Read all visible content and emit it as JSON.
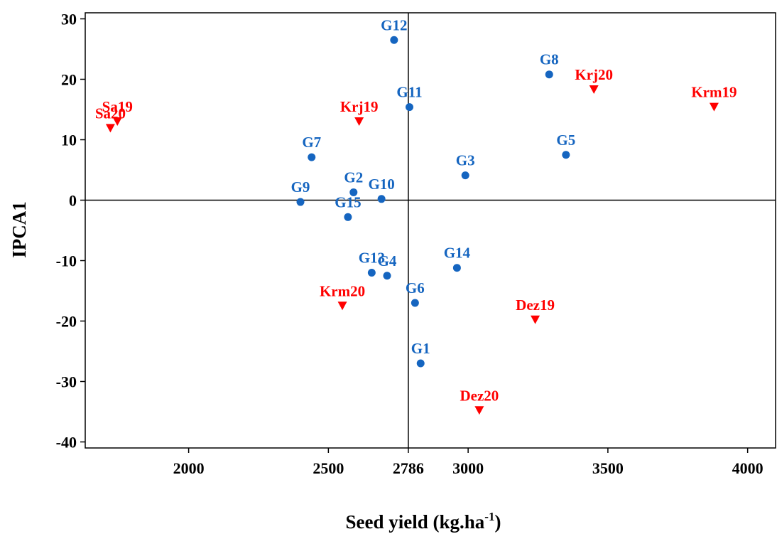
{
  "chart_data": {
    "type": "scatter",
    "title": "",
    "xlabel": "Seed yield (kg.ha",
    "xlabel_sup": "-1",
    "xlabel_close": ")",
    "ylabel": "IPCA1",
    "xlim": [
      1630,
      4100
    ],
    "ylim": [
      -41,
      31
    ],
    "x_ticks": [
      2000,
      2500,
      2786,
      3000,
      3500,
      4000
    ],
    "y_ticks": [
      -40,
      -30,
      -20,
      -10,
      0,
      10,
      20,
      30
    ],
    "reference_lines": {
      "x": 2786,
      "y": 0
    },
    "grid": false,
    "colors": {
      "genotype": "#1565C0",
      "environment": "#FF0000"
    },
    "series": [
      {
        "marker": "circle",
        "color": "#1565C0",
        "points": [
          {
            "label": "G1",
            "x": 2830,
            "y": -27.0
          },
          {
            "label": "G2",
            "x": 2590,
            "y": 1.3
          },
          {
            "label": "G3",
            "x": 2990,
            "y": 4.1
          },
          {
            "label": "G4",
            "x": 2710,
            "y": -12.5
          },
          {
            "label": "G5",
            "x": 3350,
            "y": 7.5
          },
          {
            "label": "G6",
            "x": 2810,
            "y": -17.0
          },
          {
            "label": "G7",
            "x": 2440,
            "y": 7.1
          },
          {
            "label": "G8",
            "x": 3290,
            "y": 20.8
          },
          {
            "label": "G9",
            "x": 2400,
            "y": -0.3
          },
          {
            "label": "G10",
            "x": 2690,
            "y": 0.2
          },
          {
            "label": "G11",
            "x": 2790,
            "y": 15.4
          },
          {
            "label": "G12",
            "x": 2735,
            "y": 26.5
          },
          {
            "label": "G13",
            "x": 2655,
            "y": -12.0
          },
          {
            "label": "G14",
            "x": 2960,
            "y": -11.2
          },
          {
            "label": "G15",
            "x": 2570,
            "y": -2.8
          }
        ]
      },
      {
        "marker": "triangle-down",
        "color": "#FF0000",
        "points": [
          {
            "label": "Sa19",
            "x": 1745,
            "y": 13.0
          },
          {
            "label": "Sa20",
            "x": 1720,
            "y": 11.9
          },
          {
            "label": "Krj19",
            "x": 2610,
            "y": 13.0
          },
          {
            "label": "Krj20",
            "x": 3450,
            "y": 18.3
          },
          {
            "label": "Krm19",
            "x": 3880,
            "y": 15.4
          },
          {
            "label": "Krm20",
            "x": 2550,
            "y": -17.5
          },
          {
            "label": "Dez19",
            "x": 3240,
            "y": -19.8
          },
          {
            "label": "Dez20",
            "x": 3040,
            "y": -34.8
          }
        ]
      }
    ]
  }
}
